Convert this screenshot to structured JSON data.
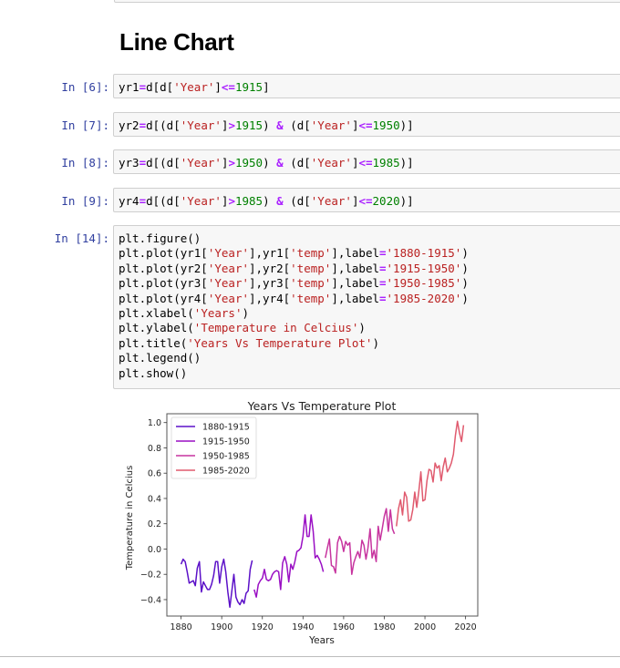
{
  "notebook": {
    "heading": "Line Chart",
    "cells": [
      {
        "prompt": "In [6]:",
        "code": [
          [
            [
              "v",
              "yr1"
            ],
            [
              "o",
              "="
            ],
            [
              "v",
              "d[d["
            ],
            [
              "s",
              "'Year'"
            ],
            [
              "v",
              "]"
            ],
            [
              "o",
              "<="
            ],
            [
              "n",
              "1915"
            ],
            [
              "v",
              "]"
            ]
          ]
        ]
      },
      {
        "prompt": "In [7]:",
        "code": [
          [
            [
              "v",
              "yr2"
            ],
            [
              "o",
              "="
            ],
            [
              "v",
              "d[(d["
            ],
            [
              "s",
              "'Year'"
            ],
            [
              "v",
              "]"
            ],
            [
              "o",
              ">"
            ],
            [
              "n",
              "1915"
            ],
            [
              "v",
              ") "
            ],
            [
              "o",
              "&"
            ],
            [
              "v",
              " (d["
            ],
            [
              "s",
              "'Year'"
            ],
            [
              "v",
              "]"
            ],
            [
              "o",
              "<="
            ],
            [
              "n",
              "1950"
            ],
            [
              "v",
              ")]"
            ]
          ]
        ]
      },
      {
        "prompt": "In [8]:",
        "code": [
          [
            [
              "v",
              "yr3"
            ],
            [
              "o",
              "="
            ],
            [
              "v",
              "d[(d["
            ],
            [
              "s",
              "'Year'"
            ],
            [
              "v",
              "]"
            ],
            [
              "o",
              ">"
            ],
            [
              "n",
              "1950"
            ],
            [
              "v",
              ") "
            ],
            [
              "o",
              "&"
            ],
            [
              "v",
              " (d["
            ],
            [
              "s",
              "'Year'"
            ],
            [
              "v",
              "]"
            ],
            [
              "o",
              "<="
            ],
            [
              "n",
              "1985"
            ],
            [
              "v",
              ")]"
            ]
          ]
        ]
      },
      {
        "prompt": "In [9]:",
        "code": [
          [
            [
              "v",
              "yr4"
            ],
            [
              "o",
              "="
            ],
            [
              "v",
              "d[(d["
            ],
            [
              "s",
              "'Year'"
            ],
            [
              "v",
              "]"
            ],
            [
              "o",
              ">"
            ],
            [
              "n",
              "1985"
            ],
            [
              "v",
              ") "
            ],
            [
              "o",
              "&"
            ],
            [
              "v",
              " (d["
            ],
            [
              "s",
              "'Year'"
            ],
            [
              "v",
              "]"
            ],
            [
              "o",
              "<="
            ],
            [
              "n",
              "2020"
            ],
            [
              "v",
              ")]"
            ]
          ]
        ]
      },
      {
        "prompt": "In [14]:",
        "code": [
          [
            [
              "v",
              "plt.figure()"
            ]
          ],
          [
            [
              "v",
              "plt.plot(yr1["
            ],
            [
              "s",
              "'Year'"
            ],
            [
              "v",
              "],yr1["
            ],
            [
              "s",
              "'temp'"
            ],
            [
              "v",
              "],label"
            ],
            [
              "o",
              "="
            ],
            [
              "s",
              "'1880-1915'"
            ],
            [
              "v",
              ")"
            ]
          ],
          [
            [
              "v",
              "plt.plot(yr2["
            ],
            [
              "s",
              "'Year'"
            ],
            [
              "v",
              "],yr2["
            ],
            [
              "s",
              "'temp'"
            ],
            [
              "v",
              "],label"
            ],
            [
              "o",
              "="
            ],
            [
              "s",
              "'1915-1950'"
            ],
            [
              "v",
              ")"
            ]
          ],
          [
            [
              "v",
              "plt.plot(yr3["
            ],
            [
              "s",
              "'Year'"
            ],
            [
              "v",
              "],yr3["
            ],
            [
              "s",
              "'temp'"
            ],
            [
              "v",
              "],label"
            ],
            [
              "o",
              "="
            ],
            [
              "s",
              "'1950-1985'"
            ],
            [
              "v",
              ")"
            ]
          ],
          [
            [
              "v",
              "plt.plot(yr4["
            ],
            [
              "s",
              "'Year'"
            ],
            [
              "v",
              "],yr4["
            ],
            [
              "s",
              "'temp'"
            ],
            [
              "v",
              "],label"
            ],
            [
              "o",
              "="
            ],
            [
              "s",
              "'1985-2020'"
            ],
            [
              "v",
              ")"
            ]
          ],
          [
            [
              "v",
              "plt.xlabel("
            ],
            [
              "s",
              "'Years'"
            ],
            [
              "v",
              ")"
            ]
          ],
          [
            [
              "v",
              "plt.ylabel("
            ],
            [
              "s",
              "'Temperature in Celcius'"
            ],
            [
              "v",
              ")"
            ]
          ],
          [
            [
              "v",
              "plt.title("
            ],
            [
              "s",
              "'Years Vs Temperature Plot'"
            ],
            [
              "v",
              ")"
            ]
          ],
          [
            [
              "v",
              "plt.legend()"
            ]
          ],
          [
            [
              "v",
              "plt.show()"
            ]
          ]
        ]
      }
    ]
  },
  "chart_data": {
    "type": "line",
    "title": "Years Vs Temperature Plot",
    "xlabel": "Years",
    "ylabel": "Temperature in Celcius",
    "xlim": [
      1873,
      2026
    ],
    "ylim": [
      -0.53,
      1.07
    ],
    "xticks": [
      1880,
      1900,
      1920,
      1940,
      1960,
      1980,
      2000,
      2020
    ],
    "yticks": [
      -0.4,
      -0.2,
      0.0,
      0.2,
      0.4,
      0.6,
      0.8,
      1.0
    ],
    "ytick_labels": [
      "−0.4",
      "−0.2",
      "0.0",
      "0.2",
      "0.4",
      "0.6",
      "0.8",
      "1.0"
    ],
    "grid": false,
    "legend_position": "upper left",
    "series": [
      {
        "name": "1880-1915",
        "color": "#5b10c8",
        "x_start": 1880,
        "values": [
          -0.12,
          -0.08,
          -0.1,
          -0.18,
          -0.27,
          -0.26,
          -0.25,
          -0.29,
          -0.15,
          -0.1,
          -0.34,
          -0.26,
          -0.29,
          -0.32,
          -0.32,
          -0.28,
          -0.21,
          -0.1,
          -0.1,
          -0.27,
          -0.14,
          -0.08,
          -0.18,
          -0.34,
          -0.46,
          -0.33,
          -0.2,
          -0.38,
          -0.42,
          -0.44,
          -0.4,
          -0.43,
          -0.35,
          -0.33,
          -0.16,
          -0.09
        ]
      },
      {
        "name": "1915-1950",
        "color": "#9a0fc4",
        "x_start": 1916,
        "values": [
          -0.32,
          -0.38,
          -0.28,
          -0.25,
          -0.23,
          -0.16,
          -0.24,
          -0.25,
          -0.24,
          -0.2,
          -0.18,
          -0.17,
          -0.18,
          -0.32,
          -0.11,
          -0.06,
          -0.12,
          -0.26,
          -0.12,
          -0.16,
          -0.1,
          -0.02,
          -0.01,
          0.01,
          0.1,
          0.27,
          0.1,
          0.1,
          0.27,
          0.14,
          -0.07,
          -0.05,
          -0.08,
          -0.12,
          -0.18
        ]
      },
      {
        "name": "1950-1985",
        "color": "#c7349f",
        "x_start": 1951,
        "values": [
          -0.07,
          0.01,
          0.08,
          -0.13,
          -0.14,
          -0.19,
          0.05,
          0.1,
          0.06,
          -0.02,
          0.06,
          0.03,
          0.05,
          -0.2,
          -0.11,
          -0.06,
          -0.02,
          -0.07,
          0.07,
          0.03,
          -0.08,
          0.01,
          0.16,
          -0.07,
          -0.01,
          -0.1,
          0.18,
          0.07,
          0.16,
          0.26,
          0.32,
          0.14,
          0.31,
          0.16,
          0.12
        ]
      },
      {
        "name": "1985-2020",
        "color": "#e05a6e",
        "x_start": 1986,
        "values": [
          0.18,
          0.32,
          0.39,
          0.27,
          0.45,
          0.41,
          0.22,
          0.23,
          0.31,
          0.45,
          0.33,
          0.46,
          0.61,
          0.38,
          0.39,
          0.54,
          0.63,
          0.62,
          0.53,
          0.68,
          0.64,
          0.66,
          0.54,
          0.65,
          0.72,
          0.61,
          0.64,
          0.68,
          0.75,
          0.9,
          1.01,
          0.92,
          0.85,
          0.98
        ]
      }
    ]
  }
}
